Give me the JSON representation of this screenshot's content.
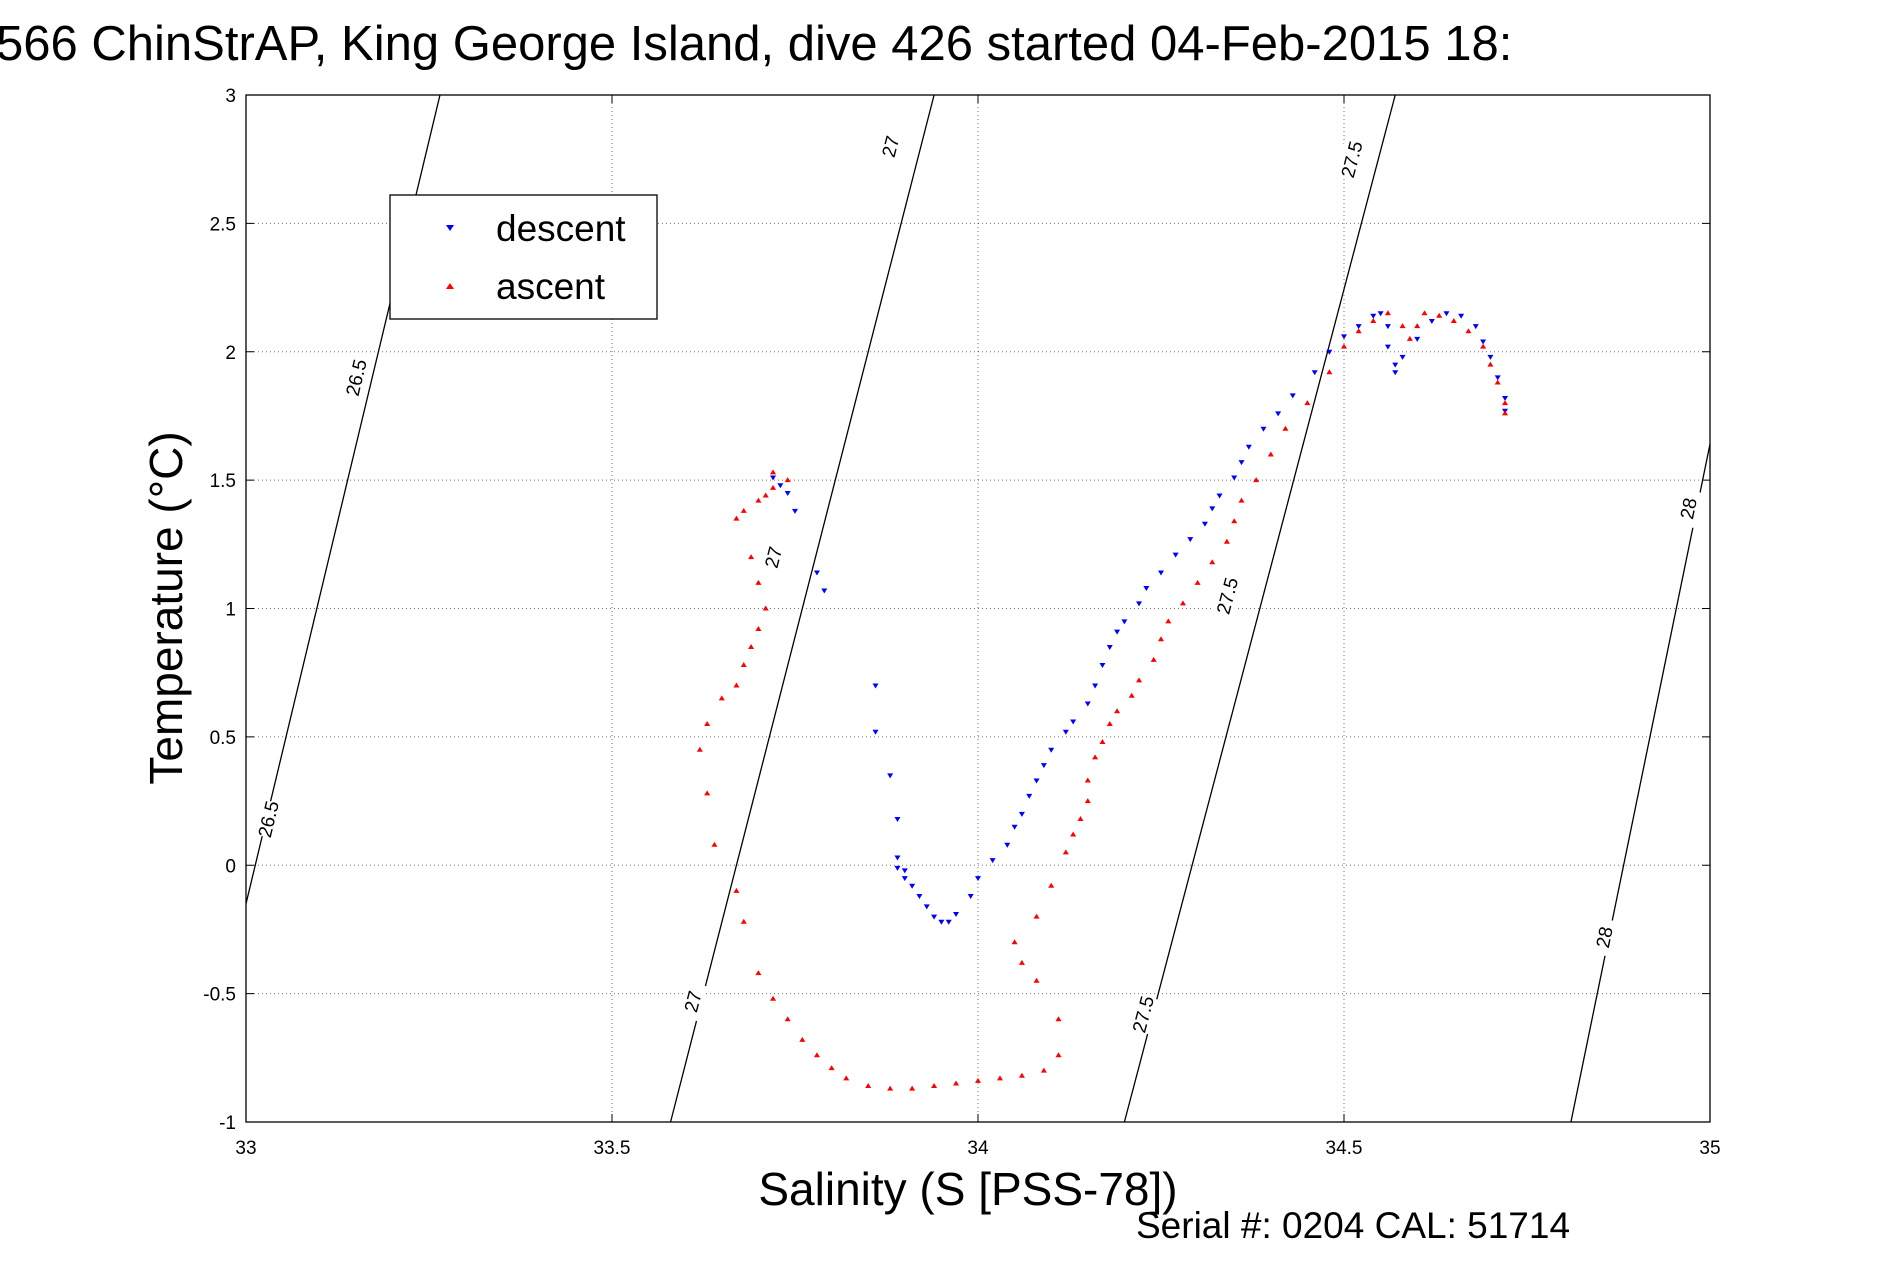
{
  "figure": {
    "title": "566 ChinStrAP, King George Island, dive 426 started 04-Feb-2015 18:",
    "serial_text": "Serial #: 0204  CAL: 51714"
  },
  "chart_data": {
    "type": "scatter",
    "xlabel": "Salinity (S [PSS-78])",
    "ylabel": "Temperature (°C)",
    "xlim": [
      33,
      35
    ],
    "ylim": [
      -1,
      3
    ],
    "xticks": [
      33,
      33.5,
      34,
      34.5,
      35
    ],
    "xtick_labels": [
      "33",
      "33.5",
      "34",
      "34.5",
      "35"
    ],
    "yticks": [
      -1,
      -0.5,
      0,
      0.5,
      1,
      1.5,
      2,
      2.5,
      3
    ],
    "ytick_labels": [
      "-1",
      "-0.5",
      "0",
      "0.5",
      "1",
      "1.5",
      "2",
      "2.5",
      "3"
    ],
    "grid": true,
    "legend_position": "top-left",
    "series": [
      {
        "name": "descent",
        "color": "#0000ff",
        "marker": "triangle-down",
        "points": [
          [
            33.72,
            1.51
          ],
          [
            33.73,
            1.48
          ],
          [
            33.74,
            1.45
          ],
          [
            33.75,
            1.38
          ],
          [
            33.78,
            1.14
          ],
          [
            33.79,
            1.07
          ],
          [
            33.86,
            0.7
          ],
          [
            33.86,
            0.52
          ],
          [
            33.88,
            0.35
          ],
          [
            33.89,
            0.18
          ],
          [
            33.89,
            0.03
          ],
          [
            33.89,
            -0.01
          ],
          [
            33.9,
            -0.02
          ],
          [
            33.9,
            -0.05
          ],
          [
            33.91,
            -0.08
          ],
          [
            33.92,
            -0.12
          ],
          [
            33.93,
            -0.16
          ],
          [
            33.94,
            -0.2
          ],
          [
            33.95,
            -0.22
          ],
          [
            33.96,
            -0.22
          ],
          [
            33.97,
            -0.19
          ],
          [
            33.99,
            -0.12
          ],
          [
            34.0,
            -0.05
          ],
          [
            34.02,
            0.02
          ],
          [
            34.04,
            0.08
          ],
          [
            34.05,
            0.15
          ],
          [
            34.06,
            0.2
          ],
          [
            34.07,
            0.27
          ],
          [
            34.08,
            0.33
          ],
          [
            34.09,
            0.39
          ],
          [
            34.1,
            0.45
          ],
          [
            34.12,
            0.52
          ],
          [
            34.13,
            0.56
          ],
          [
            34.15,
            0.63
          ],
          [
            34.16,
            0.7
          ],
          [
            34.17,
            0.78
          ],
          [
            34.18,
            0.85
          ],
          [
            34.19,
            0.91
          ],
          [
            34.2,
            0.95
          ],
          [
            34.22,
            1.02
          ],
          [
            34.23,
            1.08
          ],
          [
            34.25,
            1.14
          ],
          [
            34.27,
            1.21
          ],
          [
            34.29,
            1.27
          ],
          [
            34.31,
            1.33
          ],
          [
            34.32,
            1.39
          ],
          [
            34.33,
            1.44
          ],
          [
            34.35,
            1.51
          ],
          [
            34.36,
            1.57
          ],
          [
            34.37,
            1.63
          ],
          [
            34.39,
            1.7
          ],
          [
            34.41,
            1.76
          ],
          [
            34.43,
            1.83
          ],
          [
            34.46,
            1.92
          ],
          [
            34.48,
            2.0
          ],
          [
            34.5,
            2.06
          ],
          [
            34.52,
            2.1
          ],
          [
            34.54,
            2.14
          ],
          [
            34.55,
            2.15
          ],
          [
            34.56,
            2.1
          ],
          [
            34.56,
            2.02
          ],
          [
            34.57,
            1.95
          ],
          [
            34.57,
            1.92
          ],
          [
            34.58,
            1.98
          ],
          [
            34.6,
            2.05
          ],
          [
            34.62,
            2.12
          ],
          [
            34.64,
            2.15
          ],
          [
            34.66,
            2.14
          ],
          [
            34.68,
            2.1
          ],
          [
            34.69,
            2.04
          ],
          [
            34.7,
            1.98
          ],
          [
            34.71,
            1.9
          ],
          [
            34.72,
            1.82
          ],
          [
            34.72,
            1.77
          ]
        ]
      },
      {
        "name": "ascent",
        "color": "#ff0000",
        "marker": "triangle-up",
        "points": [
          [
            33.72,
            1.53
          ],
          [
            33.72,
            1.47
          ],
          [
            33.71,
            1.44
          ],
          [
            33.7,
            1.42
          ],
          [
            33.68,
            1.38
          ],
          [
            33.67,
            1.35
          ],
          [
            33.74,
            1.5
          ],
          [
            33.69,
            1.2
          ],
          [
            33.7,
            1.1
          ],
          [
            33.71,
            1.0
          ],
          [
            33.7,
            0.92
          ],
          [
            33.69,
            0.85
          ],
          [
            33.68,
            0.78
          ],
          [
            33.67,
            0.7
          ],
          [
            33.65,
            0.65
          ],
          [
            33.63,
            0.55
          ],
          [
            33.62,
            0.45
          ],
          [
            33.63,
            0.28
          ],
          [
            33.64,
            0.08
          ],
          [
            33.67,
            -0.1
          ],
          [
            33.68,
            -0.22
          ],
          [
            33.7,
            -0.42
          ],
          [
            33.72,
            -0.52
          ],
          [
            33.74,
            -0.6
          ],
          [
            33.76,
            -0.68
          ],
          [
            33.78,
            -0.74
          ],
          [
            33.8,
            -0.79
          ],
          [
            33.82,
            -0.83
          ],
          [
            33.85,
            -0.86
          ],
          [
            33.88,
            -0.87
          ],
          [
            33.91,
            -0.87
          ],
          [
            33.94,
            -0.86
          ],
          [
            33.97,
            -0.85
          ],
          [
            34.0,
            -0.84
          ],
          [
            34.03,
            -0.83
          ],
          [
            34.06,
            -0.82
          ],
          [
            34.09,
            -0.8
          ],
          [
            34.11,
            -0.74
          ],
          [
            34.11,
            -0.6
          ],
          [
            34.08,
            -0.45
          ],
          [
            34.06,
            -0.38
          ],
          [
            34.05,
            -0.3
          ],
          [
            34.08,
            -0.2
          ],
          [
            34.1,
            -0.08
          ],
          [
            34.12,
            0.05
          ],
          [
            34.13,
            0.12
          ],
          [
            34.14,
            0.18
          ],
          [
            34.15,
            0.25
          ],
          [
            34.15,
            0.33
          ],
          [
            34.16,
            0.42
          ],
          [
            34.17,
            0.48
          ],
          [
            34.18,
            0.55
          ],
          [
            34.19,
            0.6
          ],
          [
            34.21,
            0.66
          ],
          [
            34.22,
            0.72
          ],
          [
            34.24,
            0.8
          ],
          [
            34.25,
            0.88
          ],
          [
            34.26,
            0.95
          ],
          [
            34.28,
            1.02
          ],
          [
            34.3,
            1.1
          ],
          [
            34.32,
            1.18
          ],
          [
            34.34,
            1.26
          ],
          [
            34.35,
            1.34
          ],
          [
            34.36,
            1.42
          ],
          [
            34.38,
            1.5
          ],
          [
            34.4,
            1.6
          ],
          [
            34.42,
            1.7
          ],
          [
            34.45,
            1.8
          ],
          [
            34.48,
            1.92
          ],
          [
            34.5,
            2.02
          ],
          [
            34.52,
            2.08
          ],
          [
            34.54,
            2.12
          ],
          [
            34.56,
            2.15
          ],
          [
            34.58,
            2.1
          ],
          [
            34.59,
            2.05
          ],
          [
            34.6,
            2.1
          ],
          [
            34.61,
            2.15
          ],
          [
            34.63,
            2.14
          ],
          [
            34.65,
            2.12
          ],
          [
            34.67,
            2.08
          ],
          [
            34.69,
            2.02
          ],
          [
            34.7,
            1.95
          ],
          [
            34.71,
            1.88
          ],
          [
            34.72,
            1.8
          ],
          [
            34.72,
            1.76
          ]
        ]
      }
    ],
    "density_contours": [
      {
        "label": "26.5",
        "points": [
          [
            33.0,
            -0.15
          ],
          [
            33.265,
            3.0
          ]
        ],
        "label_points": [
          [
            33.03,
            0.18
          ],
          [
            33.15,
            1.9
          ]
        ]
      },
      {
        "label": "27",
        "points": [
          [
            33.58,
            -1.0
          ],
          [
            33.94,
            3.0
          ]
        ],
        "label_points": [
          [
            33.61,
            -0.53
          ],
          [
            33.72,
            1.2
          ],
          [
            33.88,
            2.8
          ]
        ]
      },
      {
        "label": "27.5",
        "points": [
          [
            34.2,
            -1.0
          ],
          [
            34.57,
            3.0
          ]
        ],
        "label_points": [
          [
            34.225,
            -0.58
          ],
          [
            34.34,
            1.05
          ],
          [
            34.51,
            2.75
          ]
        ]
      },
      {
        "label": "28",
        "points": [
          [
            34.81,
            -1.0
          ],
          [
            35.0,
            1.64
          ]
        ],
        "label_points": [
          [
            34.855,
            -0.28
          ],
          [
            34.97,
            1.39
          ]
        ]
      }
    ]
  }
}
